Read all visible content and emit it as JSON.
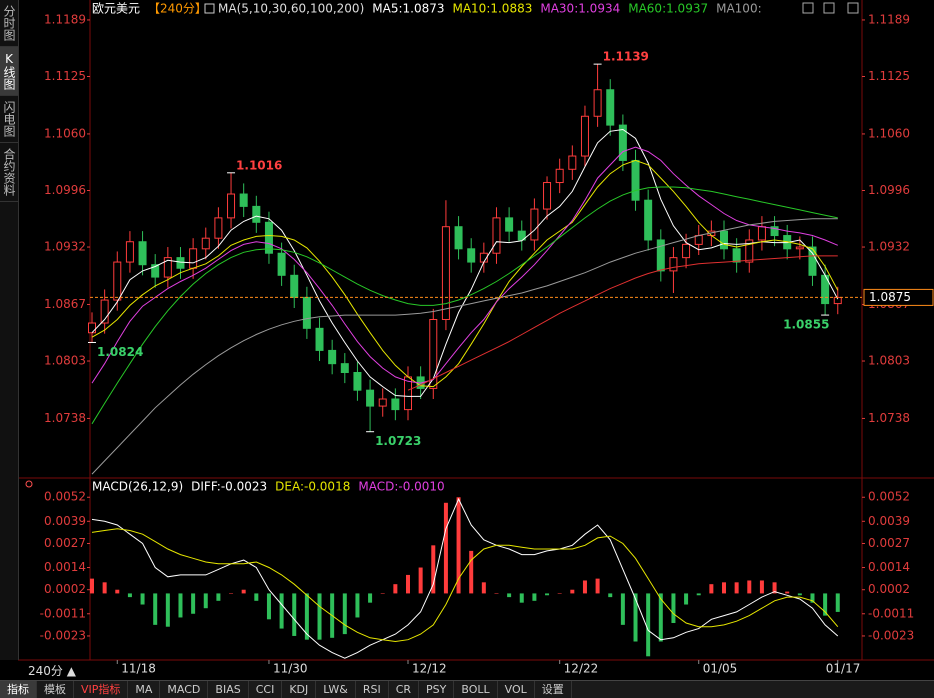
{
  "chart_data": [
    {
      "type": "candlestick",
      "title": "欧元美元",
      "subtitle": "【240分】",
      "indicator": "MA(5,10,30,60,100,200)",
      "categories": [
        null,
        null,
        "11/18",
        null,
        null,
        null,
        null,
        null,
        null,
        null,
        null,
        null,
        null,
        null,
        "11/30",
        null,
        null,
        null,
        null,
        null,
        null,
        null,
        null,
        null,
        null,
        "12/12",
        null,
        null,
        null,
        null,
        null,
        null,
        null,
        null,
        null,
        null,
        null,
        "12/22",
        null,
        null,
        null,
        null,
        null,
        null,
        null,
        null,
        null,
        null,
        "01/05",
        null,
        null,
        null,
        null,
        null,
        null,
        null,
        null,
        null,
        null,
        "01/17"
      ],
      "open": [
        1.0835,
        1.0846,
        1.0872,
        1.0915,
        1.0938,
        1.0912,
        1.0898,
        1.092,
        1.0908,
        1.093,
        1.0942,
        1.0965,
        1.0992,
        1.0978,
        1.096,
        1.0925,
        1.09,
        1.0875,
        1.084,
        1.0815,
        1.08,
        1.079,
        1.077,
        1.0752,
        1.076,
        1.0748,
        1.0785,
        1.0772,
        1.085,
        1.0955,
        1.093,
        1.0915,
        1.0925,
        1.0965,
        1.095,
        1.094,
        1.0975,
        1.1005,
        1.102,
        1.1035,
        1.108,
        1.111,
        1.107,
        1.103,
        1.0985,
        1.094,
        1.0905,
        1.092,
        1.0935,
        1.0945,
        1.095,
        1.093,
        1.0915,
        1.094,
        1.0955,
        1.0945,
        1.093,
        1.0932,
        1.09,
        1.0868
      ],
      "high": [
        1.0858,
        1.0884,
        1.0927,
        1.095,
        1.095,
        1.0924,
        1.0932,
        1.0932,
        1.0942,
        1.0954,
        1.0977,
        1.1016,
        1.1004,
        1.099,
        1.0972,
        1.0937,
        1.0912,
        1.0887,
        1.0852,
        1.0827,
        1.0812,
        1.0802,
        1.0782,
        1.0772,
        1.0772,
        1.0797,
        1.0797,
        1.0862,
        1.0985,
        1.0967,
        1.0942,
        1.0937,
        1.0977,
        1.0977,
        1.0962,
        1.0987,
        1.1012,
        1.1032,
        1.1047,
        1.1092,
        1.1139,
        1.1122,
        1.1082,
        1.1042,
        1.0997,
        1.0952,
        1.0932,
        1.0947,
        1.0957,
        1.0962,
        1.0962,
        1.0942,
        1.0952,
        1.0967,
        1.0967,
        1.0957,
        1.0944,
        1.0944,
        1.0912,
        1.0887
      ],
      "low": [
        1.0824,
        1.0834,
        1.086,
        1.0903,
        1.09,
        1.0886,
        1.0886,
        1.0896,
        1.0896,
        1.0918,
        1.093,
        1.0953,
        1.0966,
        1.0948,
        1.0913,
        1.0888,
        1.0863,
        1.0828,
        1.0803,
        1.0788,
        1.0778,
        1.0758,
        1.0723,
        1.074,
        1.0736,
        1.0736,
        1.076,
        1.076,
        1.0838,
        1.0918,
        1.0903,
        1.0903,
        1.0913,
        1.0938,
        1.0928,
        1.0928,
        1.0963,
        1.0993,
        1.1008,
        1.1023,
        1.1068,
        1.1058,
        1.1018,
        1.0973,
        1.0928,
        1.0893,
        1.088,
        1.0908,
        1.0923,
        1.0933,
        1.0918,
        1.0903,
        1.0903,
        1.0928,
        1.0933,
        1.0918,
        1.0918,
        1.0888,
        1.0855,
        1.0856
      ],
      "close": [
        1.0846,
        1.0872,
        1.0915,
        1.0938,
        1.0912,
        1.0898,
        1.092,
        1.0908,
        1.093,
        1.0942,
        1.0965,
        1.0992,
        1.0978,
        1.096,
        1.0925,
        1.09,
        1.0875,
        1.084,
        1.0815,
        1.08,
        1.079,
        1.077,
        1.0752,
        1.076,
        1.0748,
        1.0785,
        1.0772,
        1.085,
        1.0955,
        1.093,
        1.0915,
        1.0925,
        1.0965,
        1.095,
        1.094,
        1.0975,
        1.1005,
        1.102,
        1.1035,
        1.108,
        1.111,
        1.107,
        1.103,
        1.0985,
        1.094,
        1.0905,
        1.092,
        1.0935,
        1.0945,
        1.095,
        1.093,
        1.0915,
        1.094,
        1.0955,
        1.0945,
        1.093,
        1.0932,
        1.09,
        1.0868,
        1.0875
      ],
      "up_color": "#ff3c3c",
      "down_color": "#2fbf5a",
      "series": [
        {
          "name": "MA5:1.0873",
          "color": "#ffffff",
          "values": [
            1.0835,
            1.085,
            1.087,
            1.0895,
            1.0905,
            1.091,
            1.0917,
            1.0915,
            1.0914,
            1.092,
            1.0933,
            1.0951,
            1.0961,
            1.0967,
            1.0964,
            1.0951,
            1.0928,
            1.09,
            1.0871,
            1.0846,
            1.0824,
            1.0803,
            1.0785,
            1.0774,
            1.0764,
            1.0763,
            1.0763,
            1.0783,
            1.0822,
            1.0858,
            1.0884,
            1.0915,
            1.0938,
            1.0937,
            1.0939,
            1.0951,
            1.0967,
            1.0978,
            1.0995,
            1.1023,
            1.105,
            1.1063,
            1.1065,
            1.1055,
            1.1027,
            1.0986,
            1.0956,
            1.0937,
            1.0929,
            1.0931,
            1.0936,
            1.0935,
            1.0936,
            1.0938,
            1.0937,
            1.0937,
            1.094,
            1.0925,
            1.09,
            1.0873
          ]
        },
        {
          "name": "MA10:1.0883",
          "color": "#e6e600",
          "values": [
            1.083,
            1.0838,
            1.085,
            1.0866,
            1.0878,
            1.0888,
            1.0895,
            1.0903,
            1.0908,
            1.0913,
            1.0922,
            1.0934,
            1.094,
            1.0944,
            1.0945,
            1.0944,
            1.094,
            1.0931,
            1.0916,
            1.0898,
            1.0878,
            1.0856,
            1.0835,
            1.0815,
            1.0798,
            1.0785,
            1.0775,
            1.0774,
            1.0785,
            1.08,
            1.0822,
            1.0845,
            1.087,
            1.0893,
            1.091,
            1.0925,
            1.094,
            1.095,
            1.096,
            1.098,
            1.1,
            1.1015,
            1.1025,
            1.103,
            1.1025,
            1.101,
            1.0995,
            1.0978,
            1.096,
            1.0945,
            1.0935,
            1.0932,
            1.0935,
            1.0938,
            1.094,
            1.0938,
            1.0935,
            1.093,
            1.091,
            1.0883
          ]
        },
        {
          "name": "MA30:1.0934",
          "color": "#e040e0",
          "values": [
            1.0778,
            1.08,
            1.0825,
            1.0848,
            1.0865,
            1.0875,
            1.0885,
            1.0893,
            1.09,
            1.0908,
            1.0918,
            1.0928,
            1.0935,
            1.0938,
            1.0936,
            1.093,
            1.0918,
            1.0903,
            1.0885,
            1.0866,
            1.0845,
            1.0825,
            1.0808,
            1.0795,
            1.0785,
            1.078,
            1.0778,
            1.0782,
            1.08,
            1.0818,
            1.0835,
            1.085,
            1.087,
            1.0885,
            1.0898,
            1.0912,
            1.0928,
            1.0945,
            1.0962,
            1.0985,
            1.101,
            1.1025,
            1.104,
            1.1045,
            1.104,
            1.103,
            1.1015,
            1.1002,
            1.099,
            1.098,
            1.097,
            1.0962,
            1.0957,
            1.0955,
            1.0953,
            1.095,
            1.0948,
            1.0945,
            1.094,
            1.0934
          ]
        },
        {
          "name": "MA60:1.0937",
          "color": "#28c828",
          "values": [
            1.0732,
            1.0755,
            1.0778,
            1.08,
            1.0822,
            1.0842,
            1.086,
            1.0876,
            1.089,
            1.0902,
            1.0912,
            1.092,
            1.0926,
            1.0929,
            1.093,
            1.0929,
            1.0926,
            1.0921,
            1.0914,
            1.0906,
            1.0898,
            1.089,
            1.0883,
            1.0877,
            1.0872,
            1.0868,
            1.0866,
            1.0866,
            1.0868,
            1.0872,
            1.0878,
            1.0885,
            1.0893,
            1.0902,
            1.0912,
            1.0922,
            1.0932,
            1.0943,
            1.0954,
            1.0965,
            1.0975,
            1.0984,
            1.0991,
            1.0996,
            1.0999,
            1.1,
            1.1,
            1.0999,
            1.0997,
            1.0995,
            1.0992,
            1.0989,
            1.0986,
            1.0983,
            1.098,
            1.0977,
            1.0974,
            1.0971,
            1.0968,
            1.0965
          ]
        },
        {
          "name": "MA100:",
          "color": "#9a9a9a",
          "values": [
            1.0675,
            1.069,
            1.0705,
            1.072,
            1.0735,
            1.075,
            1.0763,
            1.0776,
            1.0788,
            1.0799,
            1.0809,
            1.0818,
            1.0826,
            1.0833,
            1.0839,
            1.0844,
            1.0848,
            1.0851,
            1.0853,
            1.0854,
            1.0855,
            1.0855,
            1.0855,
            1.0855,
            1.0855,
            1.0856,
            1.0857,
            1.0859,
            1.0862,
            1.0865,
            1.0868,
            1.0871,
            1.0874,
            1.0877,
            1.088,
            1.0884,
            1.0888,
            1.0893,
            1.0898,
            1.0903,
            1.0909,
            1.0915,
            1.092,
            1.0925,
            1.0929,
            1.0933,
            1.0937,
            1.0941,
            1.0945,
            1.0948,
            1.0951,
            1.0954,
            1.0957,
            1.0959,
            1.0961,
            1.0962,
            1.0963,
            1.0964,
            1.0964,
            1.0964
          ]
        },
        {
          "color": "#e03030",
          "values": [
            null,
            null,
            null,
            null,
            null,
            null,
            null,
            null,
            null,
            null,
            null,
            null,
            null,
            null,
            null,
            null,
            null,
            null,
            null,
            null,
            null,
            null,
            null,
            null,
            null,
            1.077,
            1.0776,
            1.0783,
            1.079,
            1.0797,
            1.0804,
            1.0811,
            1.0818,
            1.0825,
            1.0833,
            1.0841,
            1.0849,
            1.0857,
            1.0864,
            1.0871,
            1.0878,
            1.0885,
            1.0891,
            1.0897,
            1.0902,
            1.0906,
            1.0909,
            1.0911,
            1.0913,
            1.0914,
            1.0915,
            1.0916,
            1.0917,
            1.0918,
            1.0919,
            1.092,
            1.0921,
            1.0922,
            1.0922,
            1.0922
          ]
        }
      ],
      "last": 1.0875,
      "last_color": "#ff8c1a",
      "ylim": [
        1.0674,
        1.1198
      ],
      "yticks": [
        1.1189,
        1.1125,
        {
          "value": 1.106,
          "label": "1.1060"
        },
        1.0996,
        1.0932,
        1.0867,
        1.0803,
        1.0738
      ],
      "grid": false
    },
    {
      "type": "macd",
      "title": "MACD(26,12,9)",
      "series": [
        {
          "name": "DIFF:-0.0023",
          "color": "#ffffff",
          "values": [
            0.004,
            0.0039,
            0.0037,
            0.0032,
            0.0027,
            0.0014,
            0.0009,
            0.001,
            0.001,
            0.001,
            0.0013,
            0.0016,
            0.0018,
            0.0014,
            0.0002,
            -0.0006,
            -0.0014,
            -0.0022,
            -0.0028,
            -0.0032,
            -0.0035,
            -0.0032,
            -0.0028,
            -0.0025,
            -0.0022,
            -0.0017,
            -0.001,
            0.0005,
            0.0035,
            0.0051,
            0.0037,
            0.0029,
            0.0026,
            0.0024,
            0.0021,
            0.0021,
            0.0023,
            0.0024,
            0.0026,
            0.0032,
            0.0037,
            0.0029,
            0.0013,
            -0.0003,
            -0.002,
            -0.0025,
            -0.0024,
            -0.0021,
            -0.0019,
            -0.0014,
            -0.0012,
            -0.001,
            -0.0006,
            -0.0002,
            0.0001,
            -0.0001,
            -0.0003,
            -0.0008,
            -0.0017,
            -0.0023
          ]
        },
        {
          "name": "DEA:-0.0018",
          "color": "#e6e600",
          "values": [
            0.0033,
            0.0034,
            0.0035,
            0.0034,
            0.0032,
            0.0028,
            0.0024,
            0.0021,
            0.0019,
            0.0017,
            0.0016,
            0.0016,
            0.0016,
            0.0017,
            0.0014,
            0.001,
            0.0005,
            -0.0001,
            -0.0007,
            -0.0012,
            -0.0017,
            -0.0021,
            -0.0024,
            -0.0025,
            -0.0026,
            -0.0025,
            -0.0022,
            -0.0017,
            -0.0006,
            0.0008,
            0.0018,
            0.0024,
            0.0026,
            0.0026,
            0.0025,
            0.0024,
            0.0024,
            0.0024,
            0.0024,
            0.0026,
            0.003,
            0.0031,
            0.0027,
            0.0019,
            0.0008,
            -0.0003,
            -0.0011,
            -0.0016,
            -0.0018,
            -0.0018,
            -0.0017,
            -0.0015,
            -0.0012,
            -0.0008,
            -0.0004,
            -0.0002,
            -0.0002,
            -0.0004,
            -0.001,
            -0.0018
          ]
        }
      ],
      "bars": {
        "name": "MACD:-0.0010",
        "color": "#e040e0",
        "up_color": "#ff3c3c",
        "down_color": "#2fbf5a",
        "values": [
          0.0008,
          0.0006,
          0.0002,
          -0.0002,
          -0.0006,
          -0.0017,
          -0.0018,
          -0.0013,
          -0.0011,
          -0.0008,
          -0.0004,
          0,
          0.0002,
          -0.0004,
          -0.0014,
          -0.0019,
          -0.0023,
          -0.0025,
          -0.0025,
          -0.0024,
          -0.0022,
          -0.0013,
          -0.0005,
          0,
          0.0005,
          0.001,
          0.0014,
          0.0026,
          0.0049,
          0.0052,
          0.0023,
          0.0006,
          0,
          -0.0002,
          -0.0005,
          -0.0004,
          -0.0001,
          0,
          0.0002,
          0.0007,
          0.0008,
          -0.0002,
          -0.0017,
          -0.0026,
          -0.0034,
          -0.0026,
          -0.0016,
          -0.0006,
          -0.0001,
          0.0005,
          0.0006,
          0.0006,
          0.0007,
          0.0007,
          0.0006,
          0.0001,
          -0.0001,
          -0.0005,
          -0.0012,
          -0.001
        ]
      },
      "ylim": [
        -0.0036,
        0.0057
      ],
      "yticks": [
        0.0052,
        0.0039,
        0.0027,
        0.0014,
        0.0002,
        -0.0011,
        -0.0023
      ],
      "grid": false
    }
  ],
  "sidebar": {
    "tabs": [
      "分时图",
      "K线图",
      "闪电图",
      "合约资料"
    ]
  },
  "toolbar": {
    "period": "240分 ▲",
    "tabs": [
      "指标",
      "模板",
      "VIP指标",
      "MA",
      "MACD",
      "BIAS",
      "CCI",
      "KDJ",
      "LW&",
      "RSI",
      "CR",
      "PSY",
      "BOLL",
      "VOL",
      "设置"
    ]
  }
}
